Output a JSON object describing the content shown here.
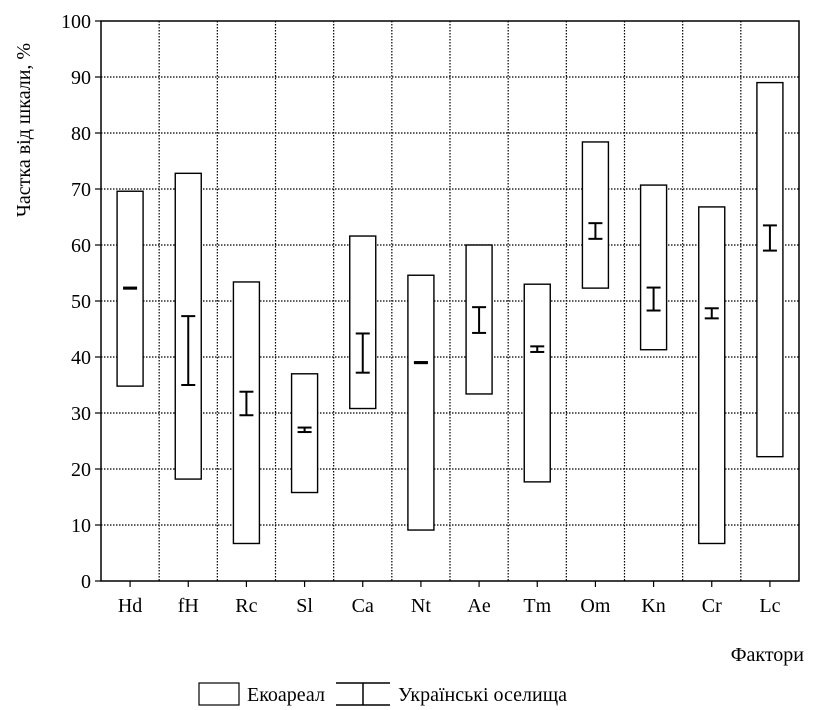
{
  "chart_data": {
    "type": "floating-bar-with-error-bars",
    "title": "",
    "xlabel": "Фактори",
    "ylabel": "Частка від шкали, %",
    "ylim": [
      0,
      100
    ],
    "yticks": [
      0,
      10,
      20,
      30,
      40,
      50,
      60,
      70,
      80,
      90,
      100
    ],
    "grid": true,
    "legend_position": "bottom-center",
    "categories": [
      "Hd",
      "fH",
      "Rc",
      "Sl",
      "Ca",
      "Nt",
      "Ae",
      "Tm",
      "Om",
      "Kn",
      "Cr",
      "Lc"
    ],
    "series": [
      {
        "name": "Екоареал",
        "kind": "range-box",
        "low": [
          34.8,
          18.2,
          6.7,
          15.8,
          30.8,
          9.1,
          33.4,
          17.7,
          52.3,
          41.3,
          6.7,
          22.2
        ],
        "high": [
          69.6,
          72.8,
          53.4,
          37.0,
          61.6,
          54.6,
          60.0,
          53.0,
          78.4,
          70.7,
          66.8,
          89.0
        ]
      },
      {
        "name": "Українські оселища",
        "kind": "error-bar",
        "low": [
          52.2,
          35.0,
          29.6,
          26.6,
          37.2,
          38.9,
          44.3,
          40.9,
          61.1,
          48.3,
          46.9,
          59.0
        ],
        "high": [
          52.4,
          47.3,
          33.8,
          27.4,
          44.2,
          39.1,
          48.9,
          41.9,
          63.9,
          52.4,
          48.7,
          63.5
        ]
      }
    ]
  }
}
